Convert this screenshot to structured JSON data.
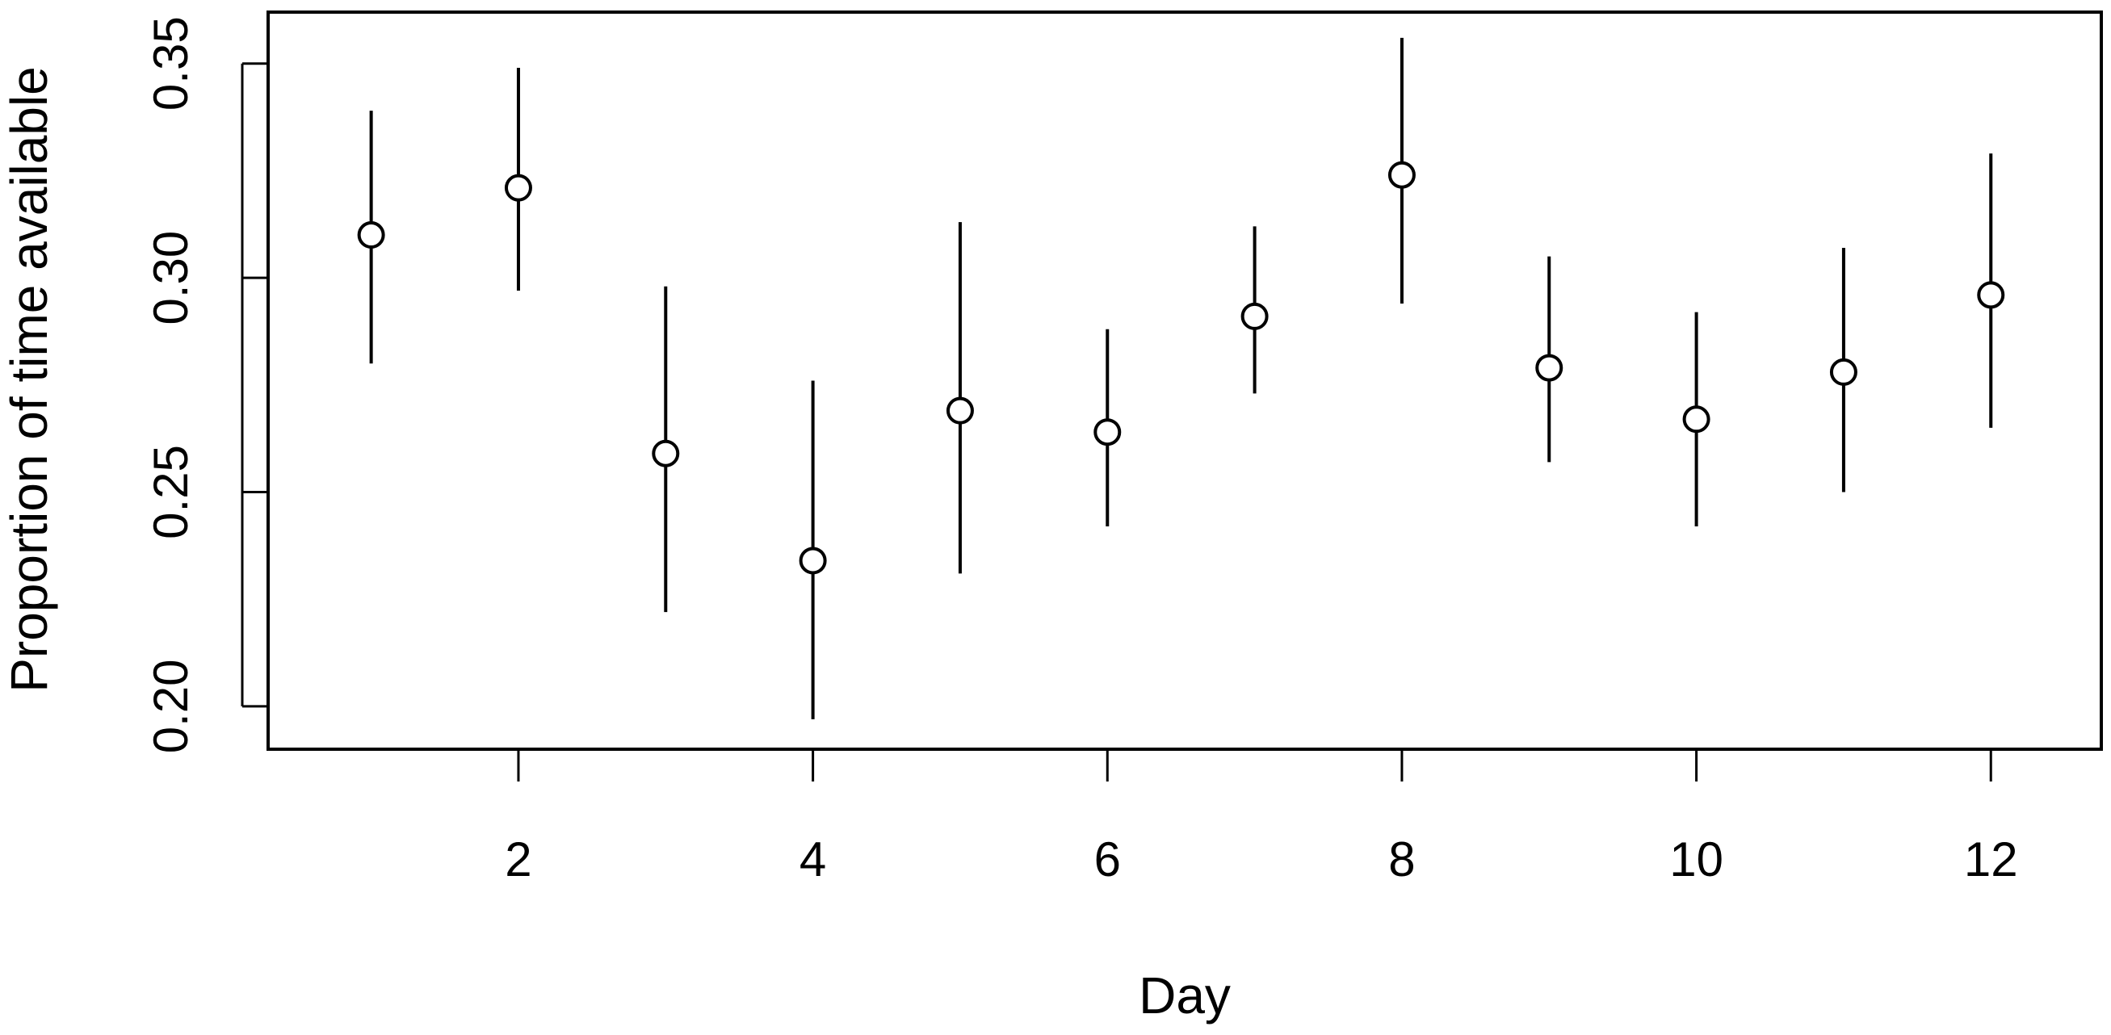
{
  "chart_data": {
    "type": "scatter",
    "title": "",
    "xlabel": "Day",
    "ylabel": "Proportion of time available",
    "xlim": [
      0.3,
      12.75
    ],
    "ylim": [
      0.19,
      0.362
    ],
    "xticks": [
      2,
      4,
      6,
      8,
      10,
      12
    ],
    "xtick_labels": [
      "2",
      "4",
      "6",
      "8",
      "10",
      "12"
    ],
    "yticks": [
      0.2,
      0.25,
      0.3,
      0.35
    ],
    "ytick_labels": [
      "0.20",
      "0.25",
      "0.30",
      "0.35"
    ],
    "grid": false,
    "legend": "none",
    "marker": "open-circle",
    "error_bars": true,
    "series": [
      {
        "x": [
          1,
          2,
          3,
          4,
          5,
          6,
          7,
          8,
          9,
          10,
          11,
          12
        ],
        "y": [
          0.31,
          0.321,
          0.259,
          0.234,
          0.269,
          0.264,
          0.291,
          0.324,
          0.279,
          0.267,
          0.278,
          0.296
        ],
        "lower": [
          0.28,
          0.297,
          0.222,
          0.197,
          0.231,
          0.242,
          0.273,
          0.294,
          0.257,
          0.242,
          0.25,
          0.265
        ],
        "upper": [
          0.339,
          0.349,
          0.298,
          0.276,
          0.313,
          0.288,
          0.312,
          0.356,
          0.305,
          0.292,
          0.307,
          0.329
        ]
      }
    ]
  }
}
